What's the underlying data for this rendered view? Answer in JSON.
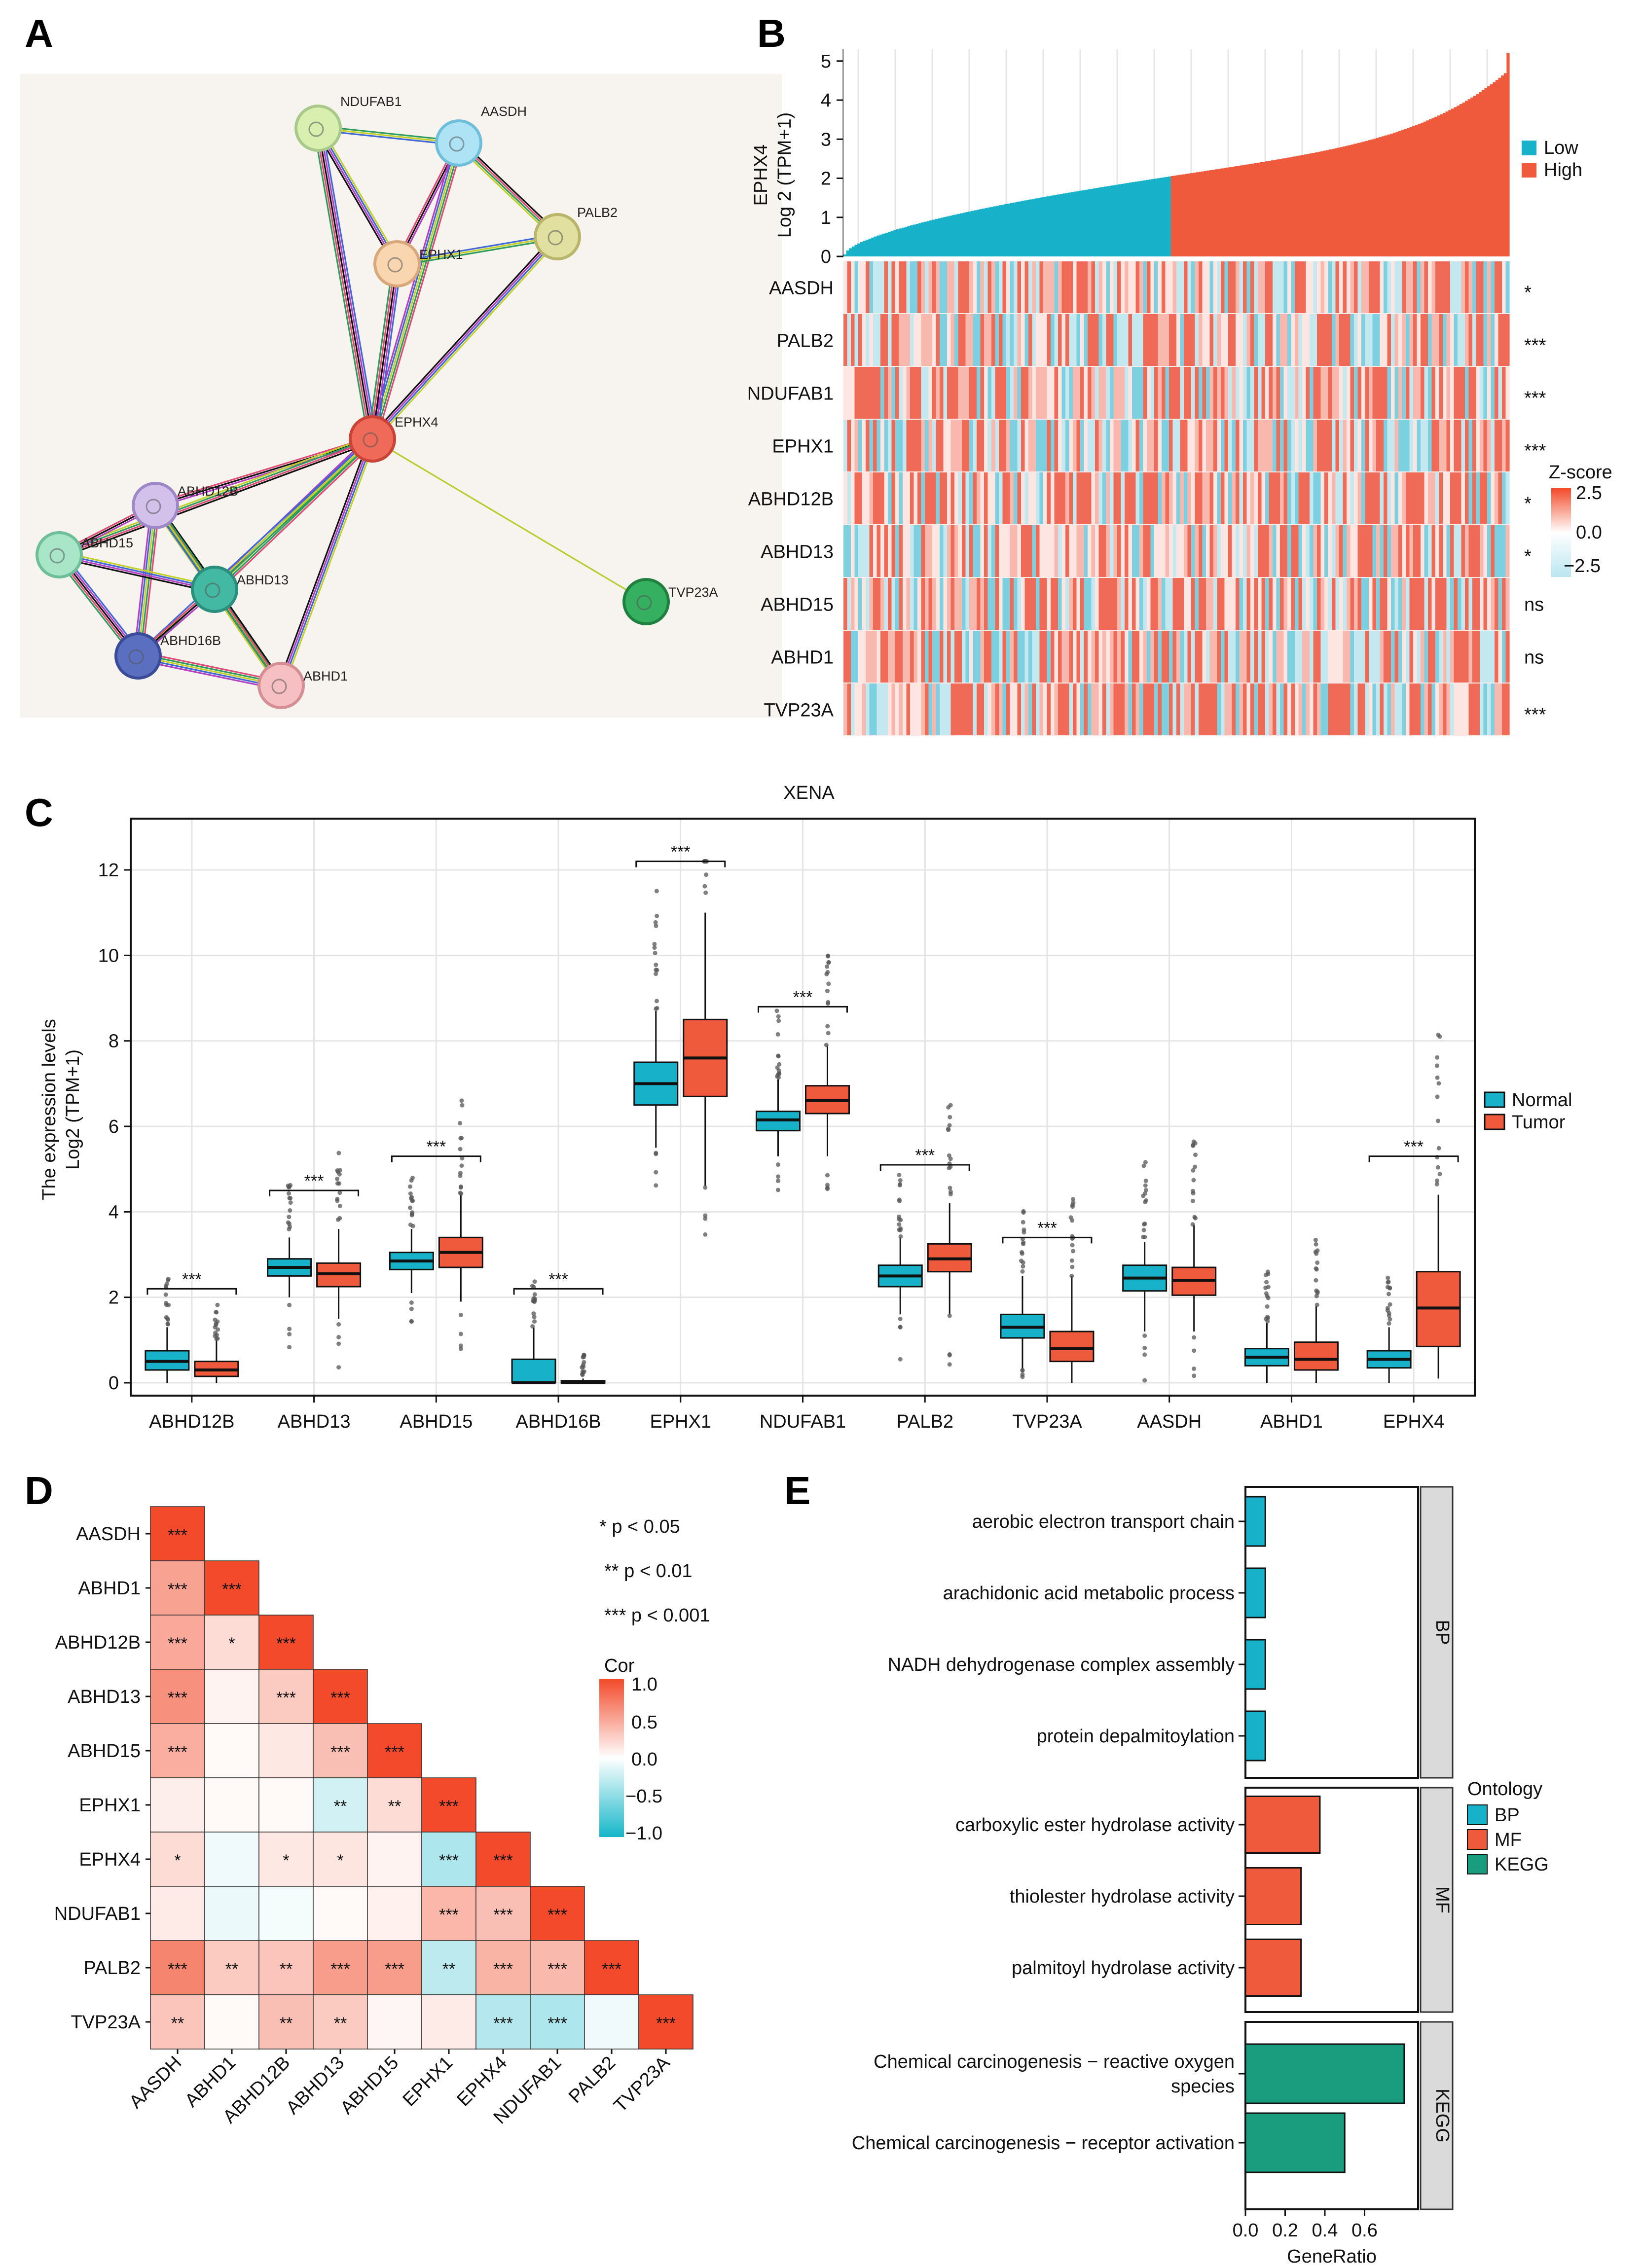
{
  "panels": {
    "A": {
      "label": "A",
      "nodes": [
        {
          "id": "NDUFAB1",
          "label": "NDUFAB1",
          "fill": "#d8efb0",
          "stroke": "#a9c98a"
        },
        {
          "id": "AASDH",
          "label": "AASDH",
          "fill": "#aee3f5",
          "stroke": "#6fbfda"
        },
        {
          "id": "PALB2",
          "label": "PALB2",
          "fill": "#e2e0a0",
          "stroke": "#b9b56a"
        },
        {
          "id": "EPHX1",
          "label": "EPHX1",
          "fill": "#f9d5b0",
          "stroke": "#d9a87a"
        },
        {
          "id": "EPHX4",
          "label": "EPHX4",
          "fill": "#f06a5a",
          "stroke": "#c94437"
        },
        {
          "id": "ABHD12B",
          "label": "ABHD12B",
          "fill": "#d3c1ec",
          "stroke": "#9f88c8"
        },
        {
          "id": "ABHD15",
          "label": "ABHD15",
          "fill": "#a9e6c8",
          "stroke": "#6dbf97"
        },
        {
          "id": "ABHD13",
          "label": "ABHD13",
          "fill": "#43b8a3",
          "stroke": "#2b8f7d"
        },
        {
          "id": "TVP23A",
          "label": "TVP23A",
          "fill": "#35b060",
          "stroke": "#1f8040"
        },
        {
          "id": "ABHD16B",
          "label": "ABHD16B",
          "fill": "#5a6fc0",
          "stroke": "#3a4c98"
        },
        {
          "id": "ABHD1",
          "label": "ABHD1",
          "fill": "#f6bfc2",
          "stroke": "#d58e93"
        }
      ],
      "edges": [
        [
          "NDUFAB1",
          "AASDH"
        ],
        [
          "NDUFAB1",
          "EPHX1"
        ],
        [
          "NDUFAB1",
          "EPHX4"
        ],
        [
          "AASDH",
          "EPHX1"
        ],
        [
          "AASDH",
          "PALB2"
        ],
        [
          "AASDH",
          "EPHX4"
        ],
        [
          "PALB2",
          "EPHX1"
        ],
        [
          "PALB2",
          "EPHX4"
        ],
        [
          "EPHX1",
          "EPHX4"
        ],
        [
          "EPHX4",
          "ABHD12B"
        ],
        [
          "EPHX4",
          "ABHD15"
        ],
        [
          "EPHX4",
          "ABHD13"
        ],
        [
          "EPHX4",
          "ABHD16B"
        ],
        [
          "EPHX4",
          "ABHD1"
        ],
        [
          "EPHX4",
          "TVP23A"
        ],
        [
          "ABHD12B",
          "ABHD15"
        ],
        [
          "ABHD12B",
          "ABHD13"
        ],
        [
          "ABHD12B",
          "ABHD16B"
        ],
        [
          "ABHD12B",
          "ABHD1"
        ],
        [
          "ABHD15",
          "ABHD13"
        ],
        [
          "ABHD15",
          "ABHD16B"
        ],
        [
          "ABHD13",
          "ABHD16B"
        ],
        [
          "ABHD13",
          "ABHD1"
        ],
        [
          "ABHD16B",
          "ABHD1"
        ]
      ]
    },
    "B": {
      "label": "B",
      "ylabel_line1": "EPHX4",
      "ylabel_line2": "Log 2 (TPM+1)",
      "yticks": [
        "0",
        "1",
        "2",
        "3",
        "4",
        "5"
      ],
      "legend": [
        {
          "label": "Low",
          "color": "#17b2ca"
        },
        {
          "label": "High",
          "color": "#f05a3c"
        }
      ],
      "rows": [
        {
          "gene": "AASDH",
          "sig": "*"
        },
        {
          "gene": "PALB2",
          "sig": "***"
        },
        {
          "gene": "NDUFAB1",
          "sig": "***"
        },
        {
          "gene": "EPHX1",
          "sig": "***"
        },
        {
          "gene": "ABHD12B",
          "sig": "*"
        },
        {
          "gene": "ABHD13",
          "sig": "*"
        },
        {
          "gene": "ABHD15",
          "sig": "ns"
        },
        {
          "gene": "ABHD1",
          "sig": "ns"
        },
        {
          "gene": "TVP23A",
          "sig": "***"
        }
      ],
      "zscore": {
        "title": "Z-score",
        "ticks": [
          "2.5",
          "0.0",
          "−2.5"
        ]
      }
    },
    "C": {
      "label": "C"
    },
    "D": {
      "label": "D",
      "pnotes": [
        "* p < 0.05",
        "** p < 0.01",
        "*** p < 0.001"
      ],
      "cor_title": "Cor",
      "cor_ticks": [
        "1.0",
        "0.5",
        "0.0",
        "−0.5",
        "−1.0"
      ]
    },
    "E": {
      "label": "E"
    }
  },
  "chart_data": [
    {
      "type": "bar",
      "panel": "B",
      "title": "",
      "ylabel": "EPHX4 Log 2 (TPM+1)",
      "ylim": [
        0,
        5.3
      ],
      "series": [
        {
          "name": "Low",
          "values_range": [
            0.0,
            2.2
          ]
        },
        {
          "name": "High",
          "values_range": [
            2.2,
            5.2
          ]
        }
      ],
      "low_fraction": 0.49
    },
    {
      "type": "boxplot",
      "panel": "C",
      "title": "XENA",
      "ylabel": "The expression levels",
      "ylabel2": "Log2 (TPM+1)",
      "ylim": [
        -0.3,
        13.2
      ],
      "yticks": [
        0,
        2,
        4,
        6,
        8,
        10,
        12
      ],
      "legend": [
        {
          "name": "Normal",
          "color": "#17b2ca"
        },
        {
          "name": "Tumor",
          "color": "#f05a3c"
        }
      ],
      "categories": [
        "ABHD12B",
        "ABHD13",
        "ABHD15",
        "ABHD16B",
        "EPHX1",
        "NDUFAB1",
        "PALB2",
        "TVP23A",
        "AASDH",
        "ABHD1",
        "EPHX4"
      ],
      "significance": [
        "***",
        "***",
        "***",
        "***",
        "***",
        "***",
        "***",
        "***",
        "",
        "",
        "***"
      ],
      "normal": [
        {
          "q1": 0.3,
          "med": 0.5,
          "q3": 0.75,
          "wl": 0.0,
          "wh": 1.3
        },
        {
          "q1": 2.5,
          "med": 2.7,
          "q3": 2.9,
          "wl": 2.0,
          "wh": 3.4
        },
        {
          "q1": 2.65,
          "med": 2.85,
          "q3": 3.05,
          "wl": 2.1,
          "wh": 3.6
        },
        {
          "q1": 0.0,
          "med": 0.0,
          "q3": 0.55,
          "wl": 0.0,
          "wh": 1.3
        },
        {
          "q1": 6.5,
          "med": 7.0,
          "q3": 7.5,
          "wl": 5.5,
          "wh": 8.7
        },
        {
          "q1": 5.9,
          "med": 6.15,
          "q3": 6.35,
          "wl": 5.3,
          "wh": 7.1
        },
        {
          "q1": 2.25,
          "med": 2.5,
          "q3": 2.75,
          "wl": 1.6,
          "wh": 3.4
        },
        {
          "q1": 1.05,
          "med": 1.3,
          "q3": 1.6,
          "wl": 0.3,
          "wh": 2.5
        },
        {
          "q1": 2.15,
          "med": 2.45,
          "q3": 2.75,
          "wl": 1.2,
          "wh": 3.3
        },
        {
          "q1": 0.4,
          "med": 0.6,
          "q3": 0.8,
          "wl": 0.0,
          "wh": 1.4
        },
        {
          "q1": 0.35,
          "med": 0.55,
          "q3": 0.75,
          "wl": 0.0,
          "wh": 1.3
        }
      ],
      "tumor": [
        {
          "q1": 0.15,
          "med": 0.3,
          "q3": 0.5,
          "wl": 0.0,
          "wh": 1.0
        },
        {
          "q1": 2.25,
          "med": 2.55,
          "q3": 2.8,
          "wl": 1.5,
          "wh": 3.6
        },
        {
          "q1": 2.7,
          "med": 3.05,
          "q3": 3.4,
          "wl": 1.9,
          "wh": 4.4
        },
        {
          "q1": 0.0,
          "med": 0.0,
          "q3": 0.05,
          "wl": 0.0,
          "wh": 0.1
        },
        {
          "q1": 6.7,
          "med": 7.6,
          "q3": 8.5,
          "wl": 4.6,
          "wh": 11.0
        },
        {
          "q1": 6.3,
          "med": 6.6,
          "q3": 6.95,
          "wl": 5.3,
          "wh": 7.9
        },
        {
          "q1": 2.6,
          "med": 2.9,
          "q3": 3.25,
          "wl": 1.6,
          "wh": 4.2
        },
        {
          "q1": 0.5,
          "med": 0.8,
          "q3": 1.2,
          "wl": 0.0,
          "wh": 2.5
        },
        {
          "q1": 2.05,
          "med": 2.4,
          "q3": 2.7,
          "wl": 1.2,
          "wh": 3.7
        },
        {
          "q1": 0.3,
          "med": 0.55,
          "q3": 0.95,
          "wl": 0.0,
          "wh": 1.8
        },
        {
          "q1": 0.85,
          "med": 1.75,
          "q3": 2.6,
          "wl": 0.1,
          "wh": 4.4
        }
      ]
    },
    {
      "type": "heatmap",
      "panel": "D",
      "title": "",
      "labels": [
        "AASDH",
        "ABHD1",
        "ABHD12B",
        "ABHD13",
        "ABHD15",
        "EPHX1",
        "EPHX4",
        "NDUFAB1",
        "PALB2",
        "TVP23A"
      ],
      "values": [
        [
          1.0
        ],
        [
          0.32,
          1.0
        ],
        [
          0.3,
          0.12,
          1.0
        ],
        [
          0.38,
          0.04,
          0.18,
          1.0
        ],
        [
          0.28,
          0.02,
          0.08,
          0.22,
          1.0
        ],
        [
          0.06,
          0.02,
          0.02,
          -0.12,
          0.12,
          1.0
        ],
        [
          0.12,
          -0.04,
          0.08,
          0.09,
          0.04,
          -0.22,
          1.0
        ],
        [
          0.07,
          -0.05,
          -0.03,
          0.02,
          0.05,
          0.25,
          0.22,
          1.0
        ],
        [
          0.42,
          0.18,
          0.2,
          0.34,
          0.34,
          -0.18,
          0.26,
          0.24,
          1.0
        ],
        [
          0.2,
          0.02,
          0.22,
          0.18,
          0.03,
          0.07,
          -0.2,
          -0.22,
          -0.04,
          1.0
        ]
      ],
      "stars": [
        [
          "***"
        ],
        [
          "***",
          "***"
        ],
        [
          "***",
          "*",
          "***"
        ],
        [
          "***",
          "",
          "***",
          "***"
        ],
        [
          "***",
          "",
          "",
          "***",
          "***"
        ],
        [
          "",
          "",
          "",
          "**",
          "**",
          "***"
        ],
        [
          "*",
          "",
          "*",
          "*",
          "",
          "***",
          "***"
        ],
        [
          "",
          "",
          "",
          "",
          "",
          "***",
          "***",
          "***"
        ],
        [
          "***",
          "**",
          "**",
          "***",
          "***",
          "**",
          "***",
          "***",
          "***"
        ],
        [
          "**",
          "",
          "**",
          "**",
          "",
          "",
          "***",
          "***",
          "",
          "***"
        ]
      ]
    },
    {
      "type": "bar",
      "panel": "E",
      "orientation": "horizontal",
      "xlabel": "GeneRatio",
      "xticks": [
        0.0,
        0.2,
        0.4,
        0.6
      ],
      "xlim": [
        0,
        0.82
      ],
      "legend_title": "Ontology",
      "legend": [
        {
          "name": "BP",
          "color": "#17b2ca"
        },
        {
          "name": "MF",
          "color": "#f05a3c"
        },
        {
          "name": "KEGG",
          "color": "#1a9c7e"
        }
      ],
      "groups": [
        {
          "name": "BP",
          "terms": [
            {
              "label": "aerobic electron transport chain",
              "value": 0.1
            },
            {
              "label": "arachidonic acid metabolic process",
              "value": 0.1
            },
            {
              "label": "NADH dehydrogenase complex assembly",
              "value": 0.1
            },
            {
              "label": "protein depalmitoylation",
              "value": 0.1
            }
          ]
        },
        {
          "name": "MF",
          "terms": [
            {
              "label": "carboxylic ester hydrolase activity",
              "value": 0.375
            },
            {
              "label": "thiolester hydrolase activity",
              "value": 0.28
            },
            {
              "label": "palmitoyl hydrolase activity",
              "value": 0.28
            }
          ]
        },
        {
          "name": "KEGG",
          "terms": [
            {
              "label": "Chemical carcinogenesis − reactive oxygen",
              "label2": "species",
              "value": 0.8
            },
            {
              "label": "Chemical carcinogenesis − receptor activation",
              "value": 0.5
            }
          ]
        }
      ]
    }
  ]
}
